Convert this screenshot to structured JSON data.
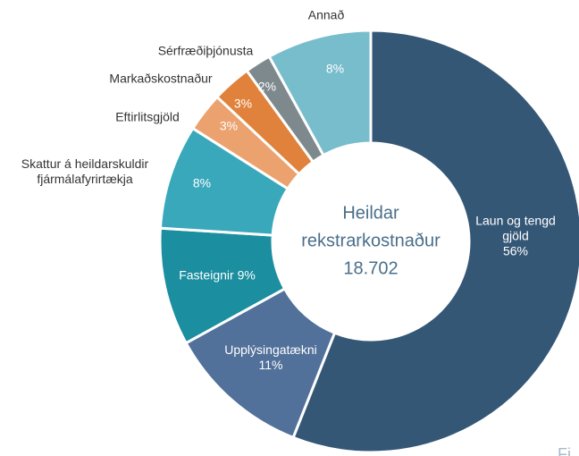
{
  "chart_data": {
    "type": "donut",
    "center_title": "Heildar rekstrarkostnaður",
    "center_value": "18.702",
    "note": "Fi",
    "categories": [
      "Laun og tengd gjöld",
      "Upplýsingatækni",
      "Fasteignir",
      "Skattur á heildarskuldir fjármálafyrirtækja",
      "Eftirlitsgjöld",
      "Markaðskostnaður",
      "Sérfræðiþjónusta",
      "Annað"
    ],
    "values": [
      56,
      11,
      9,
      8,
      3,
      3,
      2,
      8
    ],
    "value_labels": [
      "56%",
      "11%",
      "9%",
      "8%",
      "3%",
      "3%",
      "2%",
      "8%"
    ],
    "colors": [
      "#355776",
      "#51709a",
      "#1b8e9f",
      "#3aa8bb",
      "#eba26f",
      "#e0823c",
      "#7e898d",
      "#78bdcc"
    ]
  }
}
